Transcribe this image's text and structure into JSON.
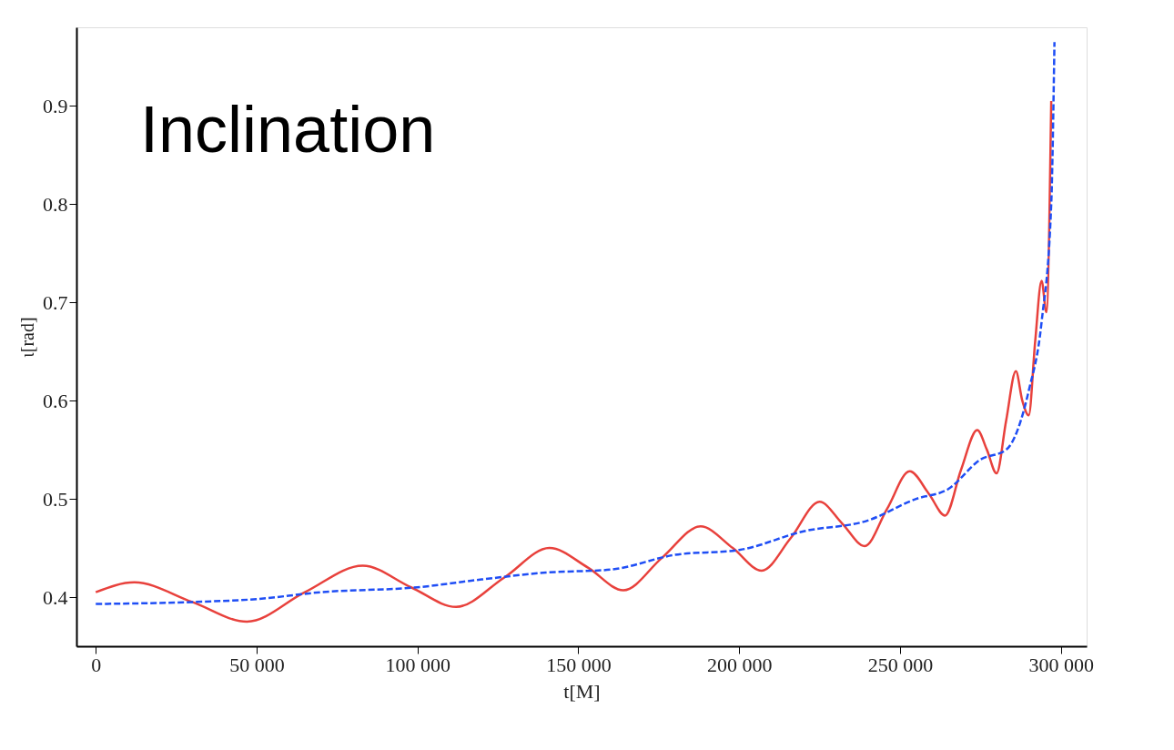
{
  "chart_data": {
    "type": "line",
    "xlabel": "t[M]",
    "ylabel": "ι[rad]",
    "annotations": [
      "Inclination"
    ],
    "xlim": [
      -6000,
      308000
    ],
    "ylim": [
      0.35,
      0.98
    ],
    "xticks": [
      0,
      {
        "value": 50000,
        "label": "50 000"
      },
      {
        "value": 100000,
        "label": "100 000"
      },
      {
        "value": 150000,
        "label": "150 000"
      },
      {
        "value": 200000,
        "label": "200 000"
      },
      {
        "value": 250000,
        "label": "250 000"
      },
      {
        "value": 300000,
        "label": "300 000"
      }
    ],
    "yticks": [
      0.4,
      0.5,
      0.6,
      0.7,
      0.8,
      0.9
    ],
    "grid": false,
    "series": [
      {
        "color": "#e8413c",
        "line_style": "solid",
        "x": [
          0,
          12000,
          30000,
          47000,
          65000,
          83000,
          98000,
          112000,
          127000,
          141000,
          153000,
          164000,
          176000,
          188000,
          198000,
          207000,
          216000,
          225000,
          232000,
          239000,
          246000,
          253000,
          259000,
          264000,
          269000,
          274000,
          277000,
          280000,
          283000,
          286000,
          288000,
          290000,
          292000,
          294000,
          295500,
          297000
        ],
        "values": [
          0.405,
          0.415,
          0.395,
          0.375,
          0.405,
          0.432,
          0.41,
          0.39,
          0.42,
          0.45,
          0.43,
          0.407,
          0.44,
          0.472,
          0.45,
          0.427,
          0.46,
          0.497,
          0.475,
          0.452,
          0.49,
          0.528,
          0.505,
          0.483,
          0.53,
          0.57,
          0.55,
          0.526,
          0.58,
          0.63,
          0.6,
          0.585,
          0.66,
          0.722,
          0.69,
          0.905
        ]
      },
      {
        "color": "#1f4ef5",
        "line_style": "dashed",
        "x": [
          0,
          30000,
          50000,
          70000,
          100000,
          120000,
          140000,
          160000,
          180000,
          200000,
          220000,
          240000,
          255000,
          265000,
          275000,
          283000,
          290000,
          294000,
          297000,
          298000
        ],
        "values": [
          0.393,
          0.395,
          0.398,
          0.405,
          0.41,
          0.418,
          0.425,
          0.428,
          0.443,
          0.448,
          0.467,
          0.478,
          0.5,
          0.51,
          0.54,
          0.55,
          0.61,
          0.68,
          0.8,
          0.965
        ]
      }
    ]
  }
}
